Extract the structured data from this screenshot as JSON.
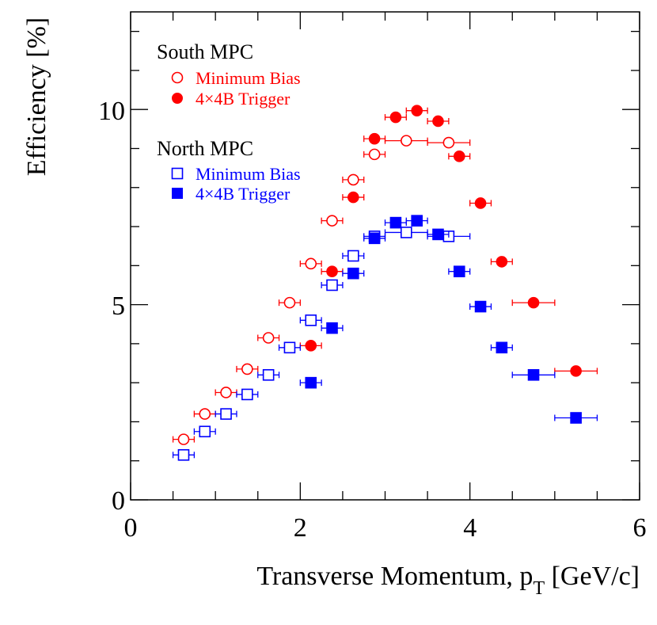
{
  "chart_data": {
    "type": "scatter",
    "xlabel_main": "Transverse Momentum, p",
    "xlabel_sub": "T",
    "xlabel_tail": " [GeV/c]",
    "ylabel": "Efficiency [%]",
    "xlim": [
      0,
      6
    ],
    "ylim": [
      0,
      12.5
    ],
    "x_tick_labels": [
      "0",
      "2",
      "4",
      "6"
    ],
    "y_tick_labels": [
      "0",
      "5",
      "10"
    ],
    "legend": {
      "placement": "top-left",
      "groups": [
        {
          "title": "South MPC",
          "entries": [
            "Minimum Bias",
            "4×4B Trigger"
          ]
        },
        {
          "title": "North MPC",
          "entries": [
            "Minimum Bias",
            "4×4B Trigger"
          ]
        }
      ]
    },
    "colors": {
      "south": "#ff0000",
      "north": "#0000ff",
      "axis": "#000000"
    },
    "series": [
      {
        "name": "South MPC Minimum Bias",
        "color": "#ff0000",
        "marker": "circle-open",
        "points": [
          {
            "x": 0.625,
            "xerr": 0.125,
            "y": 1.55
          },
          {
            "x": 0.875,
            "xerr": 0.125,
            "y": 2.2
          },
          {
            "x": 1.125,
            "xerr": 0.125,
            "y": 2.75
          },
          {
            "x": 1.375,
            "xerr": 0.125,
            "y": 3.35
          },
          {
            "x": 1.625,
            "xerr": 0.125,
            "y": 4.15
          },
          {
            "x": 1.875,
            "xerr": 0.125,
            "y": 5.05
          },
          {
            "x": 2.125,
            "xerr": 0.125,
            "y": 6.05
          },
          {
            "x": 2.375,
            "xerr": 0.125,
            "y": 7.15
          },
          {
            "x": 2.625,
            "xerr": 0.125,
            "y": 8.2
          },
          {
            "x": 2.875,
            "xerr": 0.125,
            "y": 8.85
          },
          {
            "x": 3.25,
            "xerr": 0.25,
            "y": 9.2
          },
          {
            "x": 3.75,
            "xerr": 0.25,
            "y": 9.15
          }
        ]
      },
      {
        "name": "South MPC 4×4B Trigger",
        "color": "#ff0000",
        "marker": "circle-filled",
        "points": [
          {
            "x": 2.125,
            "xerr": 0.125,
            "y": 3.95
          },
          {
            "x": 2.375,
            "xerr": 0.125,
            "y": 5.85
          },
          {
            "x": 2.625,
            "xerr": 0.125,
            "y": 7.75
          },
          {
            "x": 2.875,
            "xerr": 0.125,
            "y": 9.25
          },
          {
            "x": 3.125,
            "xerr": 0.125,
            "y": 9.8
          },
          {
            "x": 3.375,
            "xerr": 0.125,
            "y": 9.97
          },
          {
            "x": 3.625,
            "xerr": 0.125,
            "y": 9.7
          },
          {
            "x": 3.875,
            "xerr": 0.125,
            "y": 8.8
          },
          {
            "x": 4.125,
            "xerr": 0.125,
            "y": 7.6
          },
          {
            "x": 4.375,
            "xerr": 0.125,
            "y": 6.1
          },
          {
            "x": 4.75,
            "xerr": 0.25,
            "y": 5.05
          },
          {
            "x": 5.25,
            "xerr": 0.25,
            "y": 3.3
          }
        ]
      },
      {
        "name": "North MPC Minimum Bias",
        "color": "#0000ff",
        "marker": "square-open",
        "points": [
          {
            "x": 0.625,
            "xerr": 0.125,
            "y": 1.15
          },
          {
            "x": 0.875,
            "xerr": 0.125,
            "y": 1.75
          },
          {
            "x": 1.125,
            "xerr": 0.125,
            "y": 2.2
          },
          {
            "x": 1.375,
            "xerr": 0.125,
            "y": 2.7
          },
          {
            "x": 1.625,
            "xerr": 0.125,
            "y": 3.2
          },
          {
            "x": 1.875,
            "xerr": 0.125,
            "y": 3.9
          },
          {
            "x": 2.125,
            "xerr": 0.125,
            "y": 4.6
          },
          {
            "x": 2.375,
            "xerr": 0.125,
            "y": 5.5
          },
          {
            "x": 2.625,
            "xerr": 0.125,
            "y": 6.25
          },
          {
            "x": 2.875,
            "xerr": 0.125,
            "y": 6.75
          },
          {
            "x": 3.25,
            "xerr": 0.25,
            "y": 6.85
          },
          {
            "x": 3.75,
            "xerr": 0.25,
            "y": 6.75
          }
        ]
      },
      {
        "name": "North MPC 4×4B Trigger",
        "color": "#0000ff",
        "marker": "square-filled",
        "points": [
          {
            "x": 2.125,
            "xerr": 0.125,
            "y": 3.0
          },
          {
            "x": 2.375,
            "xerr": 0.125,
            "y": 4.4
          },
          {
            "x": 2.625,
            "xerr": 0.125,
            "y": 5.8
          },
          {
            "x": 2.875,
            "xerr": 0.125,
            "y": 6.7
          },
          {
            "x": 3.125,
            "xerr": 0.125,
            "y": 7.1
          },
          {
            "x": 3.375,
            "xerr": 0.125,
            "y": 7.15
          },
          {
            "x": 3.625,
            "xerr": 0.125,
            "y": 6.8
          },
          {
            "x": 3.875,
            "xerr": 0.125,
            "y": 5.85
          },
          {
            "x": 4.125,
            "xerr": 0.125,
            "y": 4.95
          },
          {
            "x": 4.375,
            "xerr": 0.125,
            "y": 3.9
          },
          {
            "x": 4.75,
            "xerr": 0.25,
            "y": 3.2
          },
          {
            "x": 5.25,
            "xerr": 0.25,
            "y": 2.1
          }
        ]
      }
    ]
  }
}
